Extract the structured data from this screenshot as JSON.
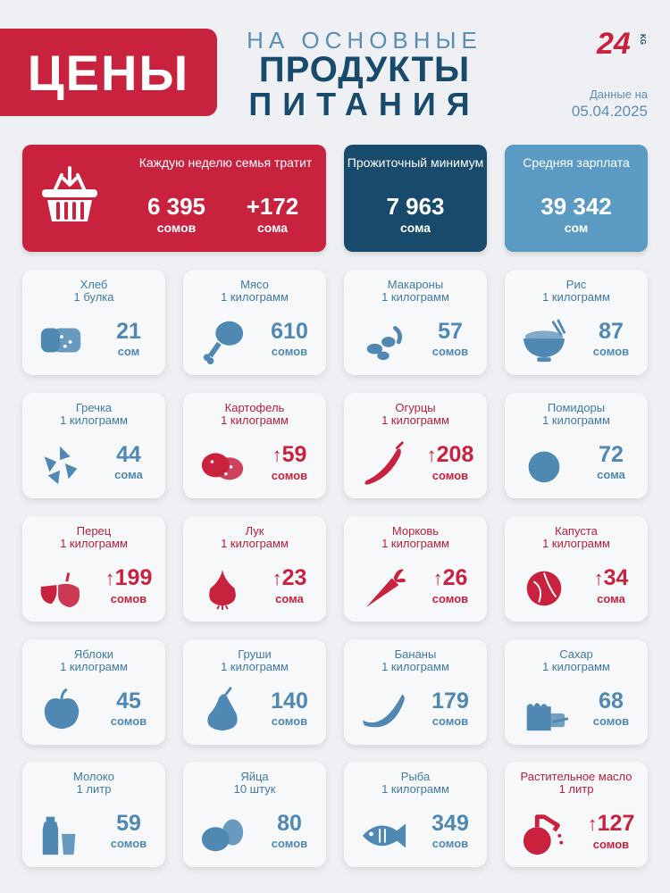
{
  "header": {
    "badge": "ЦЕНЫ",
    "subtitle": "НА ОСНОВНЫЕ",
    "title_line1": "ПРОДУКТЫ",
    "title_line2": "ПИТАНИЯ",
    "logo_num": "24",
    "logo_suffix": "KG",
    "date_label": "Данные на",
    "date_value": "05.04.2025"
  },
  "stats": {
    "weekly": {
      "title": "Каждую неделю семья тратит",
      "amount": "6 395",
      "amount_unit": "сомов",
      "change": "+172",
      "change_unit": "сома",
      "icon": "basket-icon"
    },
    "minimum": {
      "title": "Прожиточный минимум",
      "amount": "7 963",
      "unit": "сома"
    },
    "salary": {
      "title": "Средняя зарплата",
      "amount": "39 342",
      "unit": "сом"
    }
  },
  "colors": {
    "red": "#c8223f",
    "navy": "#174a6b",
    "blue": "#5b9ac3"
  },
  "products": [
    {
      "name": "Хлеб",
      "qty": "1 булка",
      "price": "21",
      "unit": "сом",
      "trend": "",
      "icon": "bread-icon"
    },
    {
      "name": "Мясо",
      "qty": "1 килограмм",
      "price": "610",
      "unit": "сомов",
      "trend": "",
      "icon": "meat-icon"
    },
    {
      "name": "Макароны",
      "qty": "1 килограмм",
      "price": "57",
      "unit": "сомов",
      "trend": "",
      "icon": "pasta-icon"
    },
    {
      "name": "Рис",
      "qty": "1 килограмм",
      "price": "87",
      "unit": "сомов",
      "trend": "",
      "icon": "rice-icon"
    },
    {
      "name": "Гречка",
      "qty": "1 килограмм",
      "price": "44",
      "unit": "сома",
      "trend": "",
      "icon": "buckwheat-icon"
    },
    {
      "name": "Картофель",
      "qty": "1 килограмм",
      "price": "59",
      "unit": "сомов",
      "trend": "up",
      "icon": "potato-icon"
    },
    {
      "name": "Огурцы",
      "qty": "1 килограмм",
      "price": "208",
      "unit": "сомов",
      "trend": "up",
      "icon": "cucumber-icon"
    },
    {
      "name": "Помидоры",
      "qty": "1 килограмм",
      "price": "72",
      "unit": "сома",
      "trend": "",
      "icon": "tomato-icon"
    },
    {
      "name": "Перец",
      "qty": "1 килограмм",
      "price": "199",
      "unit": "сомов",
      "trend": "up",
      "icon": "pepper-icon"
    },
    {
      "name": "Лук",
      "qty": "1 килограмм",
      "price": "23",
      "unit": "сома",
      "trend": "up",
      "icon": "onion-icon"
    },
    {
      "name": "Морковь",
      "qty": "1 килограмм",
      "price": "26",
      "unit": "сомов",
      "trend": "up",
      "icon": "carrot-icon"
    },
    {
      "name": "Капуста",
      "qty": "1 килограмм",
      "price": "34",
      "unit": "сома",
      "trend": "up",
      "icon": "cabbage-icon"
    },
    {
      "name": "Яблоки",
      "qty": "1 килограмм",
      "price": "45",
      "unit": "сомов",
      "trend": "",
      "icon": "apple-icon"
    },
    {
      "name": "Груши",
      "qty": "1 килограмм",
      "price": "140",
      "unit": "сомов",
      "trend": "",
      "icon": "pear-icon"
    },
    {
      "name": "Бананы",
      "qty": "1 килограмм",
      "price": "179",
      "unit": "сомов",
      "trend": "",
      "icon": "banana-icon"
    },
    {
      "name": "Сахар",
      "qty": "1 килограмм",
      "price": "68",
      "unit": "сомов",
      "trend": "",
      "icon": "sugar-icon"
    },
    {
      "name": "Молоко",
      "qty": "1 литр",
      "price": "59",
      "unit": "сомов",
      "trend": "",
      "icon": "milk-icon"
    },
    {
      "name": "Яйца",
      "qty": "10 штук",
      "price": "80",
      "unit": "сомов",
      "trend": "",
      "icon": "eggs-icon"
    },
    {
      "name": "Рыба",
      "qty": "1 килограмм",
      "price": "349",
      "unit": "сомов",
      "trend": "",
      "icon": "fish-icon"
    },
    {
      "name": "Растительное масло",
      "qty": "1 литр",
      "price": "127",
      "unit": "сомов",
      "trend": "up",
      "icon": "oil-icon"
    }
  ]
}
